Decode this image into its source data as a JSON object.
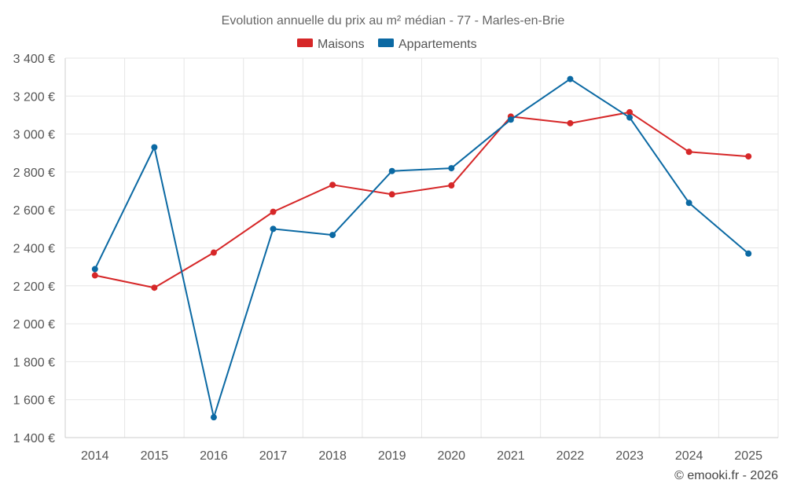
{
  "chart_data": {
    "type": "line",
    "title": "Evolution annuelle du prix au m² médian - 77 - Marles-en-Brie",
    "categories": [
      "2014",
      "2015",
      "2016",
      "2017",
      "2018",
      "2019",
      "2020",
      "2021",
      "2022",
      "2023",
      "2024",
      "2025"
    ],
    "series": [
      {
        "name": "Maisons",
        "color": "#d62728",
        "values": [
          2255,
          2190,
          2375,
          2590,
          2732,
          2682,
          2729,
          3092,
          3057,
          3115,
          2906,
          2882
        ]
      },
      {
        "name": "Appartements",
        "color": "#0b69a3",
        "values": [
          2288,
          2930,
          1507,
          2500,
          2468,
          2805,
          2820,
          3076,
          3290,
          3087,
          2637,
          2370
        ]
      }
    ],
    "ylim": [
      1400,
      3400
    ],
    "yticks": [
      1400,
      1600,
      1800,
      2000,
      2200,
      2400,
      2600,
      2800,
      3000,
      3200,
      3400
    ],
    "ytick_labels": [
      "1 400 €",
      "1 600 €",
      "1 800 €",
      "2 000 €",
      "2 200 €",
      "2 400 €",
      "2 600 €",
      "2 800 €",
      "3 000 €",
      "3 200 €",
      "3 400 €"
    ],
    "xlabel": "",
    "ylabel": "",
    "grid": true,
    "legend_position": "top-center"
  },
  "credit": "© emooki.fr - 2026"
}
